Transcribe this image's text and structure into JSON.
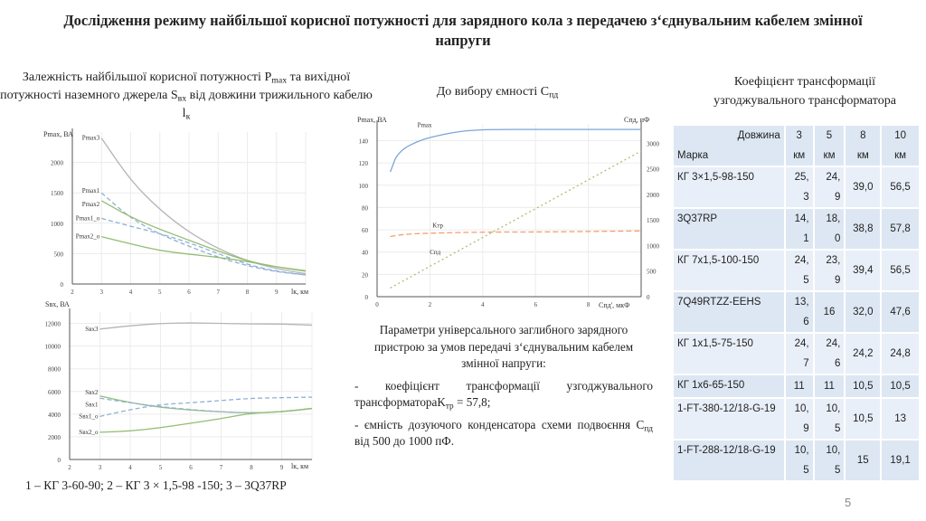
{
  "title": "Дослідження режиму найбільшої корисної потужності для зарядного кола з передачею з‘єднувальним кабелем змінної напруги",
  "left_caption": {
    "t1": "Залежність найбільшої корисної потужності ",
    "p": "P",
    "p_sub": "max",
    "t2": " та вихідної потужності наземного джерела ",
    "s": "S",
    "s_sub": "вх",
    "t3": " від довжини трижильного кабелю ",
    "l": "l",
    "l_sub": "к"
  },
  "mid_caption": {
    "t1": "До вибору ємності C",
    "sub": "пд"
  },
  "table_caption": "Коефіцієнт трансформації узгоджувального трансформатора",
  "legend_note": "1 – КГ 3-60-90; 2 – КГ 3 × 1,5-98 -150; 3 – 3Q37RP",
  "page_number": "5",
  "params": {
    "heading": "Параметри універсального заглибного зарядного пристрою за умов передачі з‘єднувальним кабелем змінної напруги:",
    "b1_text": "- коефіцієнт трансформації узгоджувального трансформатора",
    "b1_sym": "K",
    "b1_sub": "тр",
    "b1_val": " = 57,8;",
    "b2_text": "- ємність дозуючого конденсатора схеми подвоєння C",
    "b2_sub": "пд",
    "b2_val": " від 500 до 1000 пФ."
  },
  "table": {
    "header_length": "Довжина",
    "header_brand": "Марка",
    "columns": [
      [
        "3",
        "км"
      ],
      [
        "5",
        "км"
      ],
      [
        "8",
        "км"
      ],
      [
        "10",
        "км"
      ]
    ],
    "rows": [
      {
        "brand": "КГ 3×1,5-98-150",
        "c3": [
          "25,",
          "3"
        ],
        "c5": [
          "24,",
          "9"
        ],
        "c8": "39,0",
        "c10": "56,5"
      },
      {
        "brand": "3Q37RP",
        "c3": [
          "14,",
          "1"
        ],
        "c5": [
          "18,",
          "0"
        ],
        "c8": "38,8",
        "c10": "57,8"
      },
      {
        "brand": "КГ 7x1,5-100-150",
        "c3": [
          "24,",
          "5"
        ],
        "c5": [
          "23,",
          "9"
        ],
        "c8": "39,4",
        "c10": "56,5"
      },
      {
        "brand": "7Q49RTZZ-EEHS",
        "c3": [
          "13,",
          "6"
        ],
        "c5": "16",
        "c8": "32,0",
        "c10": "47,6"
      },
      {
        "brand": "КГ 1x1,5-75-150",
        "c3": [
          "24,",
          "7"
        ],
        "c5": [
          "24,",
          "6"
        ],
        "c8": "24,2",
        "c10": "24,8"
      },
      {
        "brand": "КГ 1x6-65-150",
        "c3": "11",
        "c5": "11",
        "c8": "10,5",
        "c10": "10,5"
      },
      {
        "brand": "1-FT-380-12/18-G-19",
        "c3": [
          "10,",
          "9"
        ],
        "c5": [
          "10,",
          "5"
        ],
        "c8": "10,5",
        "c10": "13"
      },
      {
        "brand": "1-FT-288-12/18-G-19",
        "c3": [
          "10,",
          "5"
        ],
        "c5": [
          "10,",
          "5"
        ],
        "c8": "15",
        "c10": "19,1"
      }
    ]
  },
  "chart_data": [
    {
      "type": "line",
      "ylabel": "Pmax, ВА",
      "xlabel": "lк, км",
      "xlim": [
        2,
        10
      ],
      "ylim": [
        0,
        2500
      ],
      "xticks": [
        2,
        3,
        4,
        5,
        6,
        7,
        8,
        9
      ],
      "yticks": [
        0,
        500,
        1000,
        1500,
        2000
      ],
      "grid": true,
      "x": [
        3,
        4,
        5,
        6,
        7,
        8,
        9,
        10
      ],
      "series": [
        {
          "name": "Pmax3",
          "color": "#b5b5b5",
          "dash": "",
          "values": [
            2400,
            1700,
            1220,
            850,
            580,
            380,
            250,
            170
          ]
        },
        {
          "name": "Pmax1",
          "color": "#8fb0d8",
          "dash": "5,3",
          "values": [
            1500,
            1080,
            820,
            620,
            440,
            300,
            200,
            150
          ]
        },
        {
          "name": "Pmax2",
          "color": "#93bd72",
          "dash": "",
          "values": [
            1370,
            1100,
            900,
            720,
            540,
            380,
            280,
            220
          ]
        },
        {
          "name": "Pmax1_o",
          "color": "#8fb0d8",
          "dash": "5,3",
          "values": [
            1080,
            950,
            830,
            680,
            500,
            320,
            210,
            150
          ]
        },
        {
          "name": "Pmax2_o",
          "color": "#93bd72",
          "dash": "",
          "values": [
            780,
            660,
            550,
            490,
            440,
            370,
            280,
            210
          ]
        }
      ]
    },
    {
      "type": "line",
      "ylabel": "Sвх, ВА",
      "xlabel": "lк, км",
      "xlim": [
        2,
        10
      ],
      "ylim": [
        0,
        13000
      ],
      "xticks": [
        2,
        3,
        4,
        5,
        6,
        7,
        8,
        9
      ],
      "yticks": [
        0,
        2000,
        4000,
        6000,
        8000,
        10000,
        12000
      ],
      "grid": true,
      "x": [
        3,
        4,
        5,
        6,
        7,
        8,
        9,
        10
      ],
      "series": [
        {
          "name": "Sвх3",
          "color": "#b5b5b5",
          "dash": "",
          "values": [
            11500,
            11800,
            12000,
            12050,
            12000,
            11950,
            11950,
            11850
          ]
        },
        {
          "name": "Sвх2",
          "color": "#93bd72",
          "dash": "",
          "values": [
            5600,
            5000,
            4600,
            4350,
            4200,
            4100,
            4200,
            4500
          ]
        },
        {
          "name": "Sвх1",
          "color": "#8fb0d8",
          "dash": "5,3",
          "values": [
            5400,
            5000,
            4650,
            4400,
            4200,
            4100,
            4200,
            4500
          ]
        },
        {
          "name": "Sвх1_o",
          "color": "#8fb0d8",
          "dash": "5,3",
          "values": [
            3800,
            4400,
            4850,
            5000,
            5200,
            5400,
            5450,
            5500
          ]
        },
        {
          "name": "Sвх2_o",
          "color": "#93bd72",
          "dash": "",
          "values": [
            2400,
            2500,
            2800,
            3200,
            3600,
            4100,
            4200,
            4500
          ]
        }
      ]
    },
    {
      "type": "line",
      "ylabel": "Pmax, ВА",
      "y2label": "Cпд, пФ",
      "xlabel": "Cпд', мкФ",
      "xlim": [
        0,
        10
      ],
      "ylim": [
        0,
        155
      ],
      "y2lim": [
        0,
        3380
      ],
      "xticks": [
        0,
        2,
        4,
        6,
        8
      ],
      "yticks": [
        0,
        20,
        40,
        60,
        80,
        100,
        120,
        140
      ],
      "y2ticks": [
        0,
        500,
        1000,
        1500,
        2000,
        2500,
        3000
      ],
      "grid": true,
      "series": [
        {
          "name": "Pmax",
          "axis": "left",
          "color": "#7aa6d6",
          "dash": "",
          "x": [
            0.5,
            0.6,
            0.7,
            1,
            1.5,
            2,
            3,
            4,
            6,
            8,
            10
          ],
          "values": [
            112,
            118,
            125,
            133,
            139,
            143,
            148,
            150,
            150,
            150,
            150
          ]
        },
        {
          "name": "Kтр",
          "axis": "left",
          "color": "#f0a070",
          "dash": "6,3",
          "x": [
            0.5,
            1,
            2,
            4,
            6,
            8,
            10
          ],
          "values": [
            54,
            56,
            57,
            58,
            58,
            58.5,
            59
          ]
        },
        {
          "name": "Спд",
          "axis": "right",
          "color": "#a8c070",
          "dash": "2,3",
          "x": [
            0.5,
            10
          ],
          "values": [
            170,
            2850
          ]
        }
      ]
    }
  ]
}
